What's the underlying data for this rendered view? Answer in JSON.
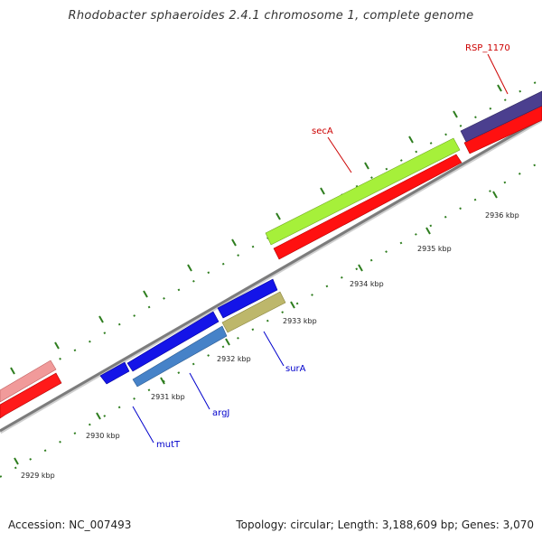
{
  "title": "Rhodobacter sphaeroides 2.4.1 chromosome 1, complete genome",
  "footer": {
    "accession": "Accession: NC_007493",
    "summary": "Topology: circular; Length: 3,188,609 bp; Genes: 3,070"
  },
  "colors": {
    "backbone": "#8a8a8a",
    "tick_major": "#2e7d1e",
    "tick_minor": "#2e7d1e",
    "forward_gene": "#ff0000",
    "label_red": "#cc0000",
    "label_blue": "#0000cc"
  },
  "kbp_labels": [
    "2929 kbp",
    "2930 kbp",
    "2931 kbp",
    "2932 kbp",
    "2933 kbp",
    "2934 kbp",
    "2935 kbp",
    "2936 kbp"
  ],
  "gene_labels": [
    {
      "text": "RSP_1170",
      "color": "#cc0000"
    },
    {
      "text": "secA",
      "color": "#cc0000"
    },
    {
      "text": "surA",
      "color": "#0000cc"
    },
    {
      "text": "argJ",
      "color": "#0000cc"
    },
    {
      "text": "mutT",
      "color": "#0000cc"
    }
  ]
}
